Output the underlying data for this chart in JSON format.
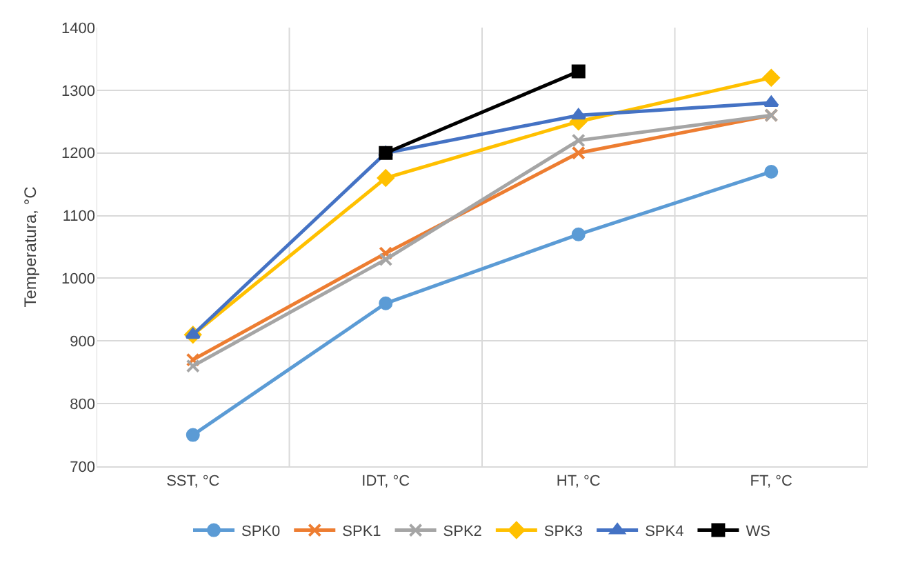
{
  "chart_data": {
    "type": "line",
    "ylabel": "Temperatura, °C",
    "categories": [
      "SST, °C",
      "IDT, °C",
      "HT, °C",
      "FT, °C"
    ],
    "series": [
      {
        "name": "SPK0",
        "color": "#5b9bd5",
        "marker": "circle",
        "values": [
          750,
          960,
          1070,
          1170
        ]
      },
      {
        "name": "SPK1",
        "color": "#ed7d31",
        "marker": "cross",
        "values": [
          870,
          1040,
          1200,
          1260
        ]
      },
      {
        "name": "SPK2",
        "color": "#a5a5a5",
        "marker": "cross",
        "values": [
          860,
          1030,
          1220,
          1260
        ]
      },
      {
        "name": "SPK3",
        "color": "#ffc000",
        "marker": "diamond",
        "values": [
          910,
          1160,
          1250,
          1320
        ]
      },
      {
        "name": "SPK4",
        "color": "#4472c4",
        "marker": "triangle",
        "values": [
          910,
          1200,
          1260,
          1280
        ]
      },
      {
        "name": "WS",
        "color": "#000000",
        "marker": "square",
        "values": [
          null,
          1200,
          1330,
          null
        ]
      }
    ],
    "ylim": [
      700,
      1400
    ],
    "yticks": [
      700,
      800,
      900,
      1000,
      1100,
      1200,
      1300,
      1400
    ],
    "grid": true,
    "legend": "bottom",
    "line_style": "solid"
  }
}
